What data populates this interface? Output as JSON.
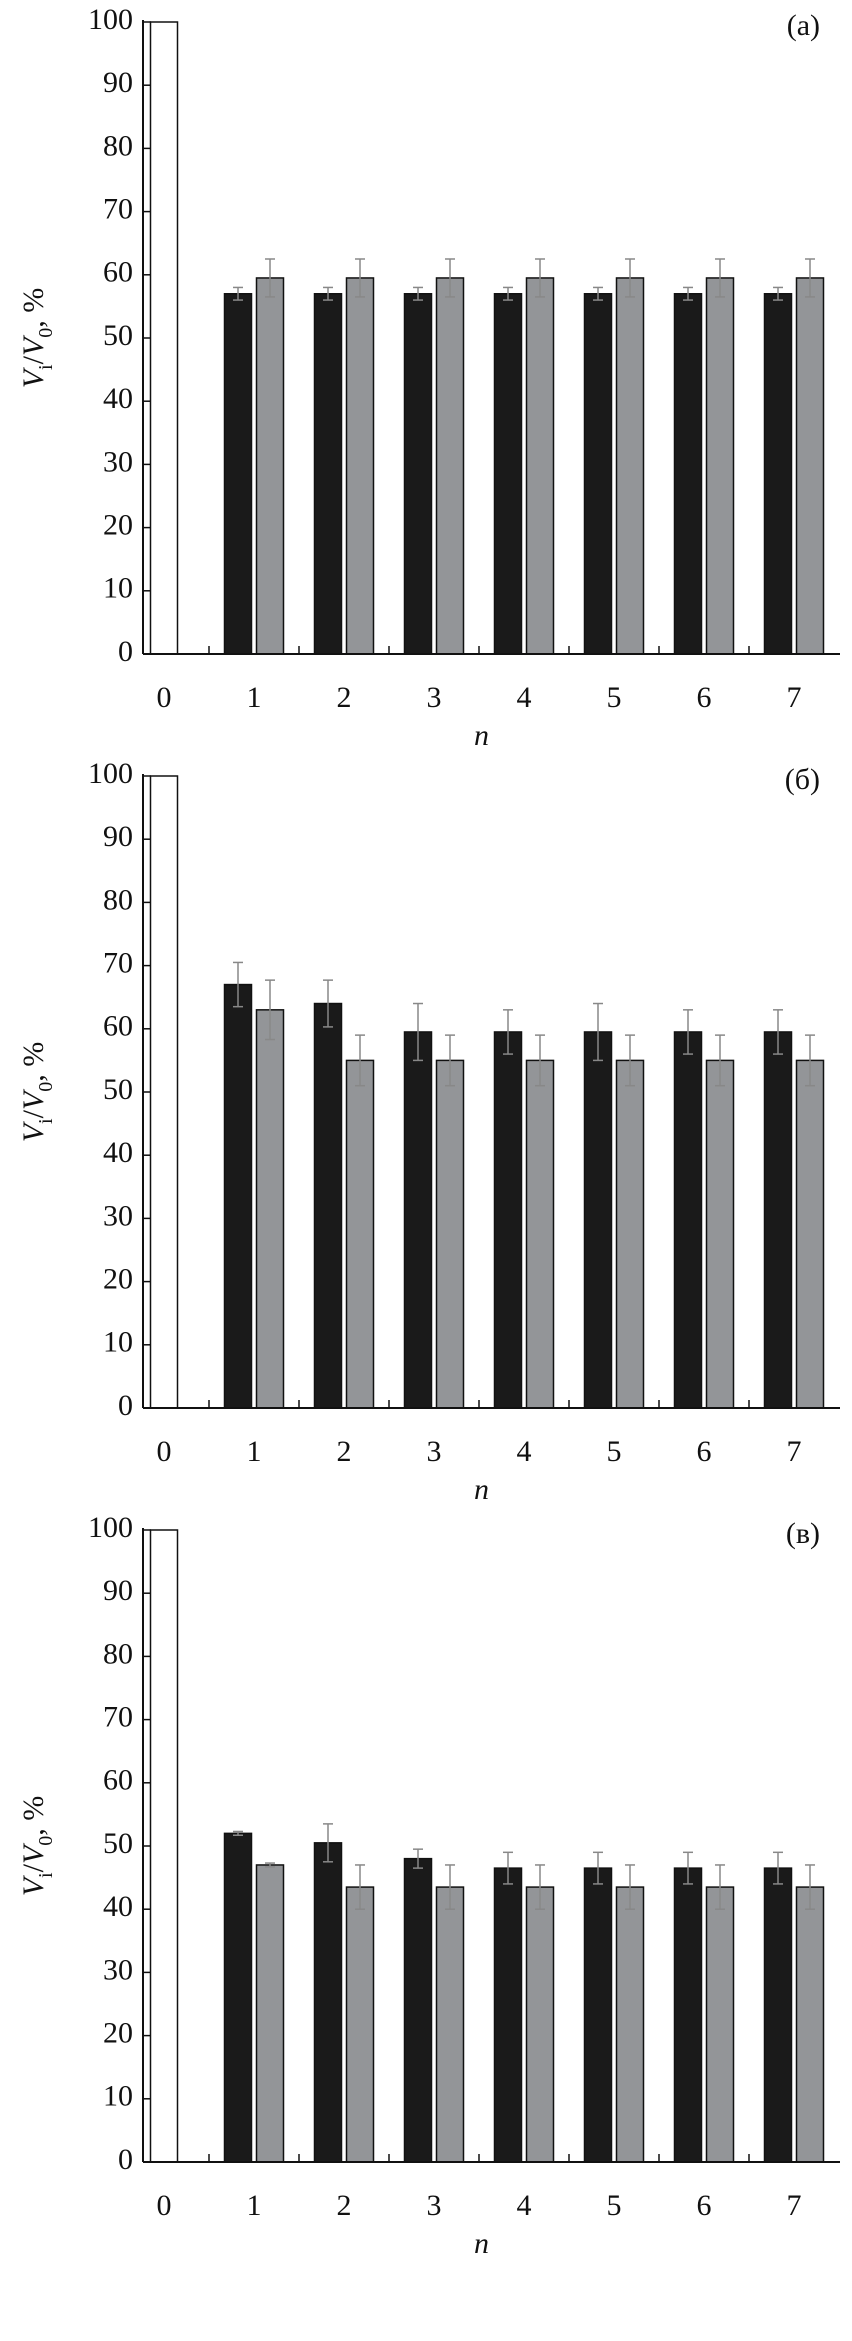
{
  "chart_data": [
    {
      "type": "bar",
      "panel_label": "(a)",
      "ylabel": [
        [
          "V",
          "italic"
        ],
        [
          "i",
          "sub"
        ],
        [
          "/",
          "normal"
        ],
        [
          "V",
          "italic"
        ],
        [
          "0",
          "sub"
        ],
        [
          ", %",
          "normal"
        ]
      ],
      "xlabel": "n",
      "categories": [
        "0",
        "1",
        "2",
        "3",
        "4",
        "5",
        "6",
        "7"
      ],
      "series": [
        {
          "color": "#ffffff",
          "values": [
            100,
            null,
            null,
            null,
            null,
            null,
            null,
            null
          ],
          "errors": [
            null,
            null,
            null,
            null,
            null,
            null,
            null,
            null
          ]
        },
        {
          "color": "#1a1a1a",
          "values": [
            null,
            57,
            57,
            57,
            57,
            57,
            57,
            57
          ],
          "errors": [
            null,
            1,
            1,
            1,
            1,
            1,
            1,
            1
          ]
        },
        {
          "color": "#939598",
          "values": [
            null,
            59.5,
            59.5,
            59.5,
            59.5,
            59.5,
            59.5,
            59.5
          ],
          "errors": [
            null,
            3,
            3,
            3,
            3,
            3,
            3,
            3
          ]
        }
      ],
      "ylim": [
        0,
        100
      ],
      "yticks": [
        0,
        10,
        20,
        30,
        40,
        50,
        60,
        70,
        80,
        90,
        100
      ]
    },
    {
      "type": "bar",
      "panel_label": "(б)",
      "ylabel": [
        [
          "V",
          "italic"
        ],
        [
          "i",
          "sub"
        ],
        [
          "/",
          "normal"
        ],
        [
          "V",
          "italic"
        ],
        [
          "0",
          "sub"
        ],
        [
          ", %",
          "normal"
        ]
      ],
      "xlabel": "n",
      "categories": [
        "0",
        "1",
        "2",
        "3",
        "4",
        "5",
        "6",
        "7"
      ],
      "series": [
        {
          "color": "#ffffff",
          "values": [
            100,
            null,
            null,
            null,
            null,
            null,
            null,
            null
          ],
          "errors": [
            null,
            null,
            null,
            null,
            null,
            null,
            null,
            null
          ]
        },
        {
          "color": "#1a1a1a",
          "values": [
            null,
            67,
            64,
            59.5,
            59.5,
            59.5,
            59.5,
            59.5
          ],
          "errors": [
            null,
            3.5,
            3.7,
            4.5,
            3.5,
            4.5,
            3.5,
            3.5
          ]
        },
        {
          "color": "#939598",
          "values": [
            null,
            63,
            55,
            55,
            55,
            55,
            55,
            55
          ],
          "errors": [
            null,
            4.7,
            4,
            4,
            4,
            4,
            4,
            4
          ]
        }
      ],
      "ylim": [
        0,
        100
      ],
      "yticks": [
        0,
        10,
        20,
        30,
        40,
        50,
        60,
        70,
        80,
        90,
        100
      ]
    },
    {
      "type": "bar",
      "panel_label": "(в)",
      "ylabel": [
        [
          "V",
          "italic"
        ],
        [
          "i",
          "sub"
        ],
        [
          "/",
          "normal"
        ],
        [
          "V",
          "italic"
        ],
        [
          "0",
          "sub"
        ],
        [
          ", %",
          "normal"
        ]
      ],
      "xlabel": "n",
      "categories": [
        "0",
        "1",
        "2",
        "3",
        "4",
        "5",
        "6",
        "7"
      ],
      "series": [
        {
          "color": "#ffffff",
          "values": [
            100,
            null,
            null,
            null,
            null,
            null,
            null,
            null
          ],
          "errors": [
            null,
            null,
            null,
            null,
            null,
            null,
            null,
            null
          ]
        },
        {
          "color": "#1a1a1a",
          "values": [
            null,
            52,
            50.5,
            48,
            46.5,
            46.5,
            46.5,
            46.5
          ],
          "errors": [
            null,
            0.3,
            3,
            1.5,
            2.5,
            2.5,
            2.5,
            2.5
          ]
        },
        {
          "color": "#939598",
          "values": [
            null,
            47,
            43.5,
            43.5,
            43.5,
            43.5,
            43.5,
            43.5
          ],
          "errors": [
            null,
            0.3,
            3.5,
            3.5,
            3.5,
            3.5,
            3.5,
            3.5
          ]
        }
      ],
      "ylim": [
        0,
        100
      ],
      "yticks": [
        0,
        10,
        20,
        30,
        40,
        50,
        60,
        70,
        80,
        90,
        100
      ]
    }
  ]
}
